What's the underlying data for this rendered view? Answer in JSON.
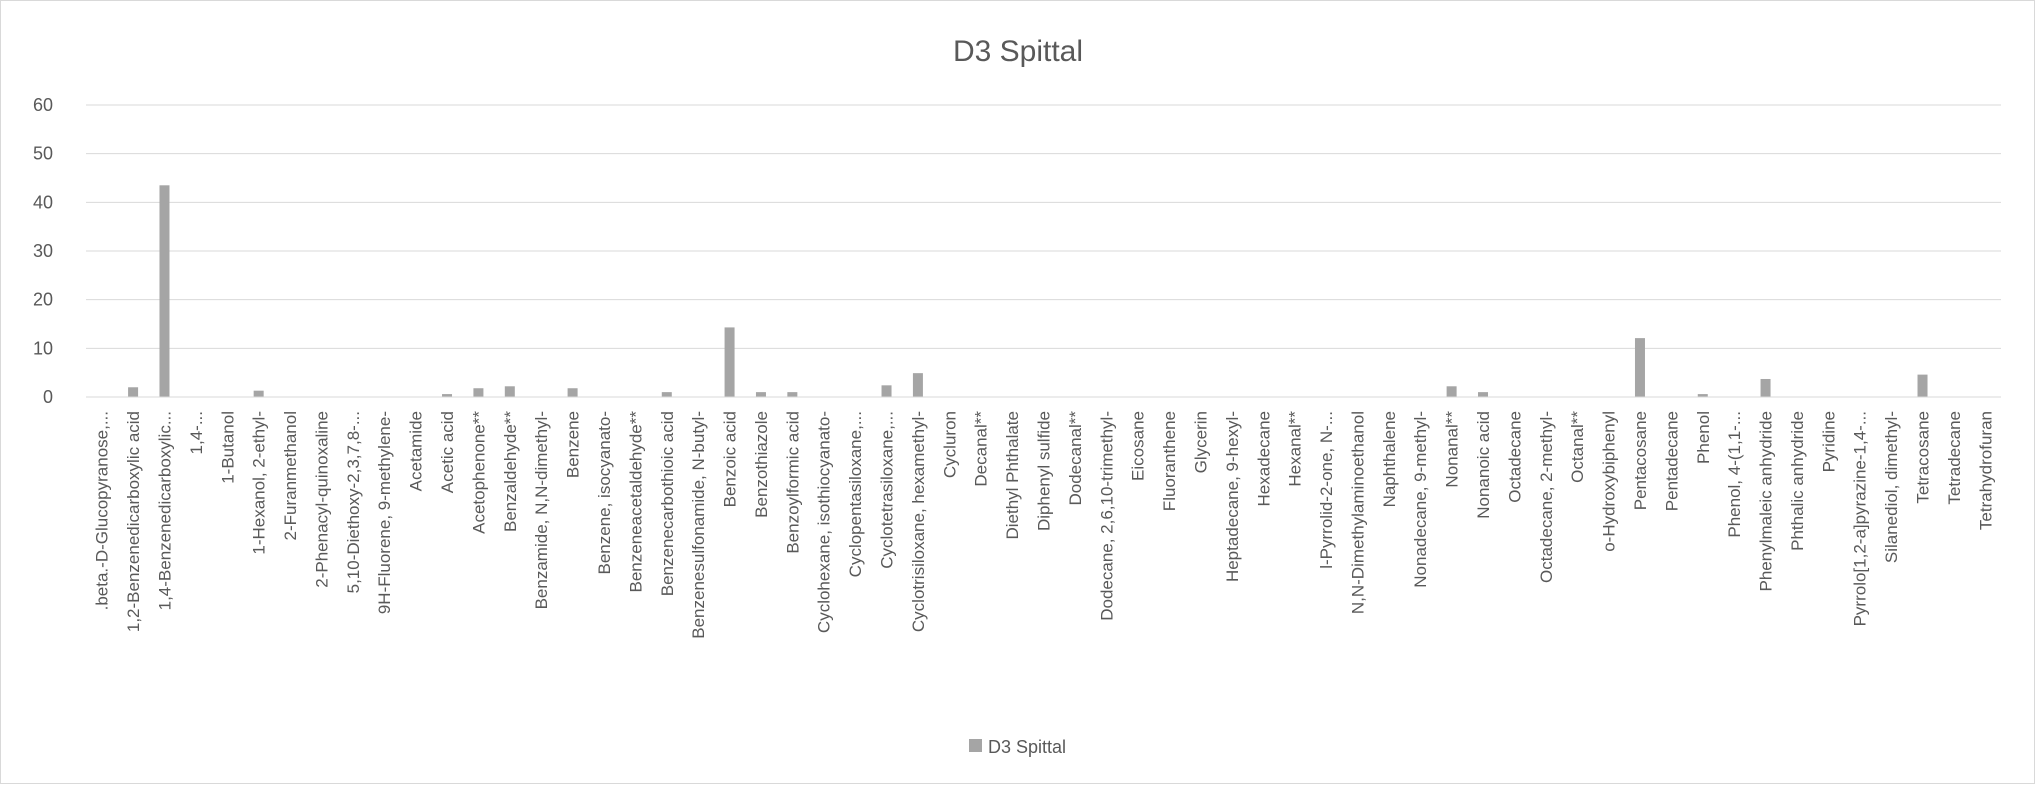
{
  "chart_data": {
    "type": "bar",
    "title": "D3 Spittal",
    "xlabel": "",
    "ylabel": "",
    "ylim": [
      0,
      60
    ],
    "yticks": [
      0,
      10,
      20,
      30,
      40,
      50,
      60
    ],
    "grid": true,
    "legend": "bottom",
    "color": "#a5a5a5",
    "categories": [
      ".beta.-D-Glucopyranose,...",
      "1,2-Benzenedicarboxylic acid",
      "1,4-Benzenedicarboxylic...",
      "1,4-...",
      "1-Butanol",
      "1-Hexanol, 2-ethyl-",
      "2-Furanmethanol",
      "2-Phenacyl-quinoxaline",
      "5,10-Diethoxy-2,3,7,8-...",
      "9H-Fluorene, 9-methylene-",
      "Acetamide",
      "Acetic acid",
      "Acetophenone**",
      "Benzaldehyde**",
      "Benzamide, N,N-dimethyl-",
      "Benzene",
      "Benzene, isocyanato-",
      "Benzeneacetaldehyde**",
      "Benzenecarbothioic acid",
      "Benzenesulfonamide, N-butyl-",
      "Benzoic acid",
      "Benzothiazole",
      "Benzoylformic acid",
      "Cyclohexane, isothiocyanato-",
      "Cyclopentasiloxane,...",
      "Cyclotetrasiloxane,...",
      "Cyclotrisiloxane, hexamethyl-",
      "Cycluron",
      "Decanal**",
      "Diethyl Phthalate",
      "Diphenyl sulfide",
      "Dodecanal**",
      "Dodecane, 2,6,10-trimethyl-",
      "Eicosane",
      "Fluoranthene",
      "Glycerin",
      "Heptadecane, 9-hexyl-",
      "Hexadecane",
      "Hexanal**",
      "l-Pyrrolid-2-one, N-...",
      "N,N-Dimethylaminoethanol",
      "Naphthalene",
      "Nonadecane, 9-methyl-",
      "Nonanal**",
      "Nonanoic acid",
      "Octadecane",
      "Octadecane, 2-methyl-",
      "Octanal**",
      "o-Hydroxybiphenyl",
      "Pentacosane",
      "Pentadecane",
      "Phenol",
      "Phenol, 4-(1,1-...",
      "Phenylmaleic anhydride",
      "Phthalic anhydride",
      "Pyridine",
      "Pyrrolo[1,2-a]pyrazine-1,4-...",
      "Silanediol, dimethyl-",
      "Tetracosane",
      "Tetradecane",
      "Tetrahydrofuran"
    ],
    "series": [
      {
        "name": "D3 Spittal",
        "values": [
          0,
          2.0,
          43.5,
          0,
          0,
          1.3,
          0,
          0,
          0,
          0,
          0,
          0.6,
          1.8,
          2.2,
          0,
          1.8,
          0,
          0,
          1.0,
          0,
          14.3,
          1.0,
          1.0,
          0,
          0,
          2.4,
          4.9,
          0,
          0,
          0,
          0,
          0,
          0,
          0,
          0,
          0,
          0,
          0,
          0,
          0,
          0,
          0,
          0,
          2.2,
          1.0,
          0,
          0,
          0,
          0,
          12.1,
          0,
          0.6,
          0,
          3.7,
          0,
          0,
          0,
          0,
          4.6,
          0,
          0
        ]
      }
    ]
  }
}
